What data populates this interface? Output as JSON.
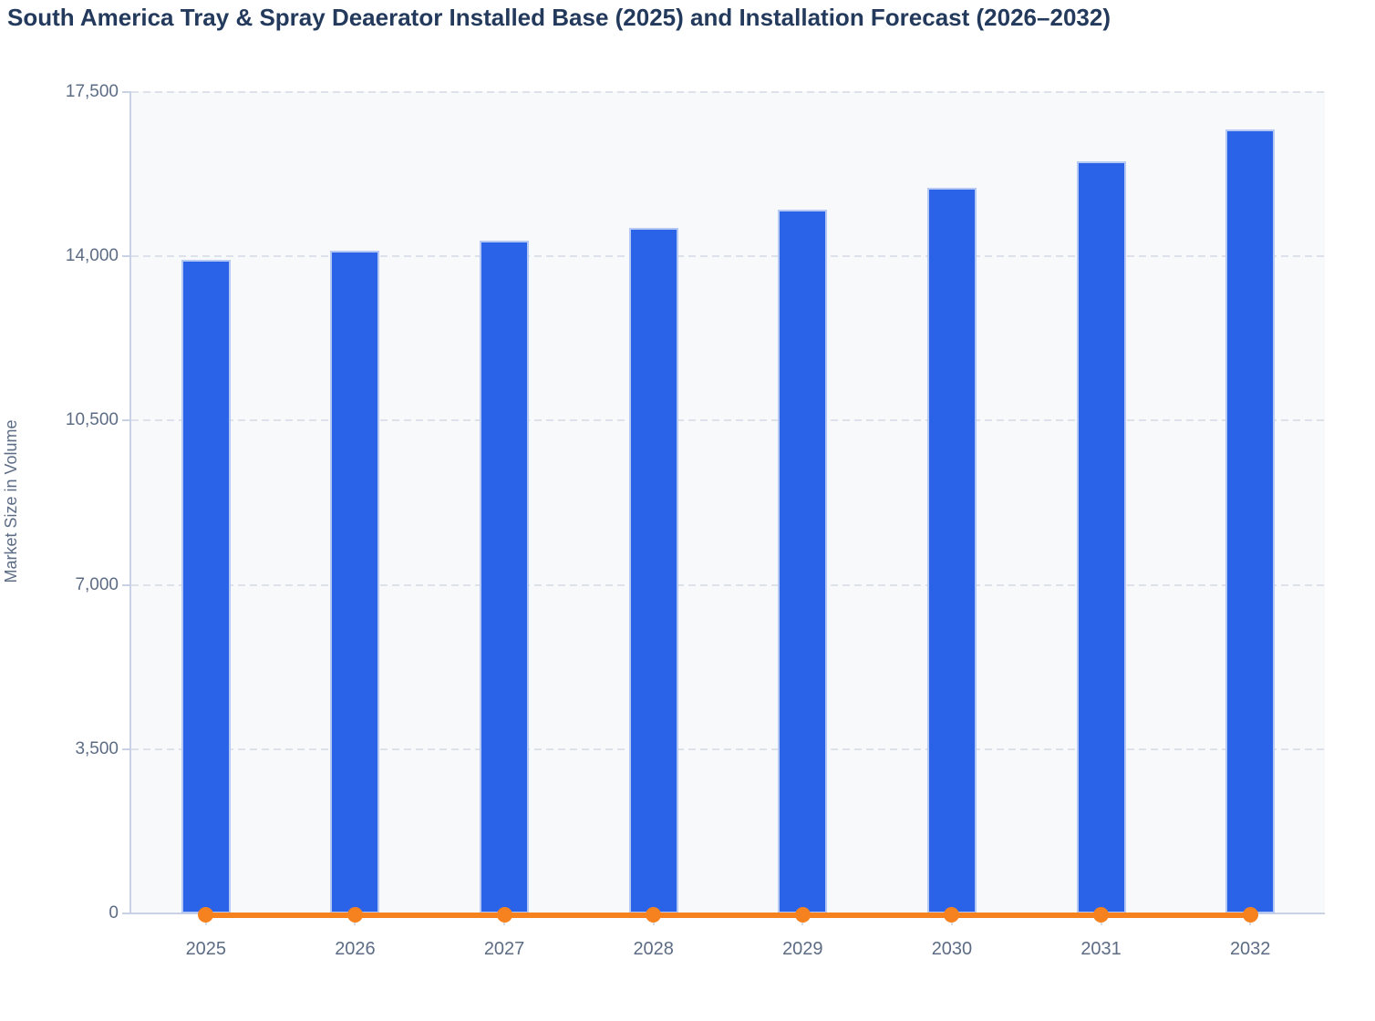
{
  "title": "South America Tray & Spray Deaerator Installed Base (2025) and Installation Forecast (2026–2032)",
  "y_axis": {
    "title": "Market Size in Volume",
    "tick_labels": [
      "17,500",
      "14,000",
      "10,500",
      "7,000",
      "3,500",
      "0"
    ],
    "tick_values": [
      17500,
      14000,
      10500,
      7000,
      3500,
      0
    ]
  },
  "x_axis": {
    "tick_labels": [
      "2025",
      "2026",
      "2027",
      "2028",
      "2029",
      "2030",
      "2031",
      "2032"
    ]
  },
  "colors": {
    "bar_fill": "#2a63e8",
    "line_orange": "#f6821f",
    "title_text": "#233a5c",
    "axis_text": "#5d6c85",
    "plot_background": "#f8f9fb"
  },
  "chart_data": {
    "type": "bar",
    "title": "South America Tray & Spray Deaerator Installed Base (2025) and Installation Forecast (2026–2032)",
    "categories": [
      "2025",
      "2026",
      "2027",
      "2028",
      "2029",
      "2030",
      "2031",
      "2032"
    ],
    "series": [
      {
        "name": "installed-base-bars",
        "type": "bar",
        "color": "#2a63e8",
        "values": [
          13930,
          14120,
          14340,
          14610,
          15000,
          15460,
          16030,
          16700
        ]
      },
      {
        "name": "baseline-line",
        "type": "line",
        "color": "#f6821f",
        "values": [
          0,
          0,
          0,
          0,
          0,
          0,
          0,
          0
        ]
      }
    ],
    "xlabel": "",
    "ylabel": "Market Size in Volume",
    "ylim": [
      0,
      17500
    ],
    "ytick_step": 3500,
    "grid": "horizontal-dashed",
    "legend": "none"
  }
}
